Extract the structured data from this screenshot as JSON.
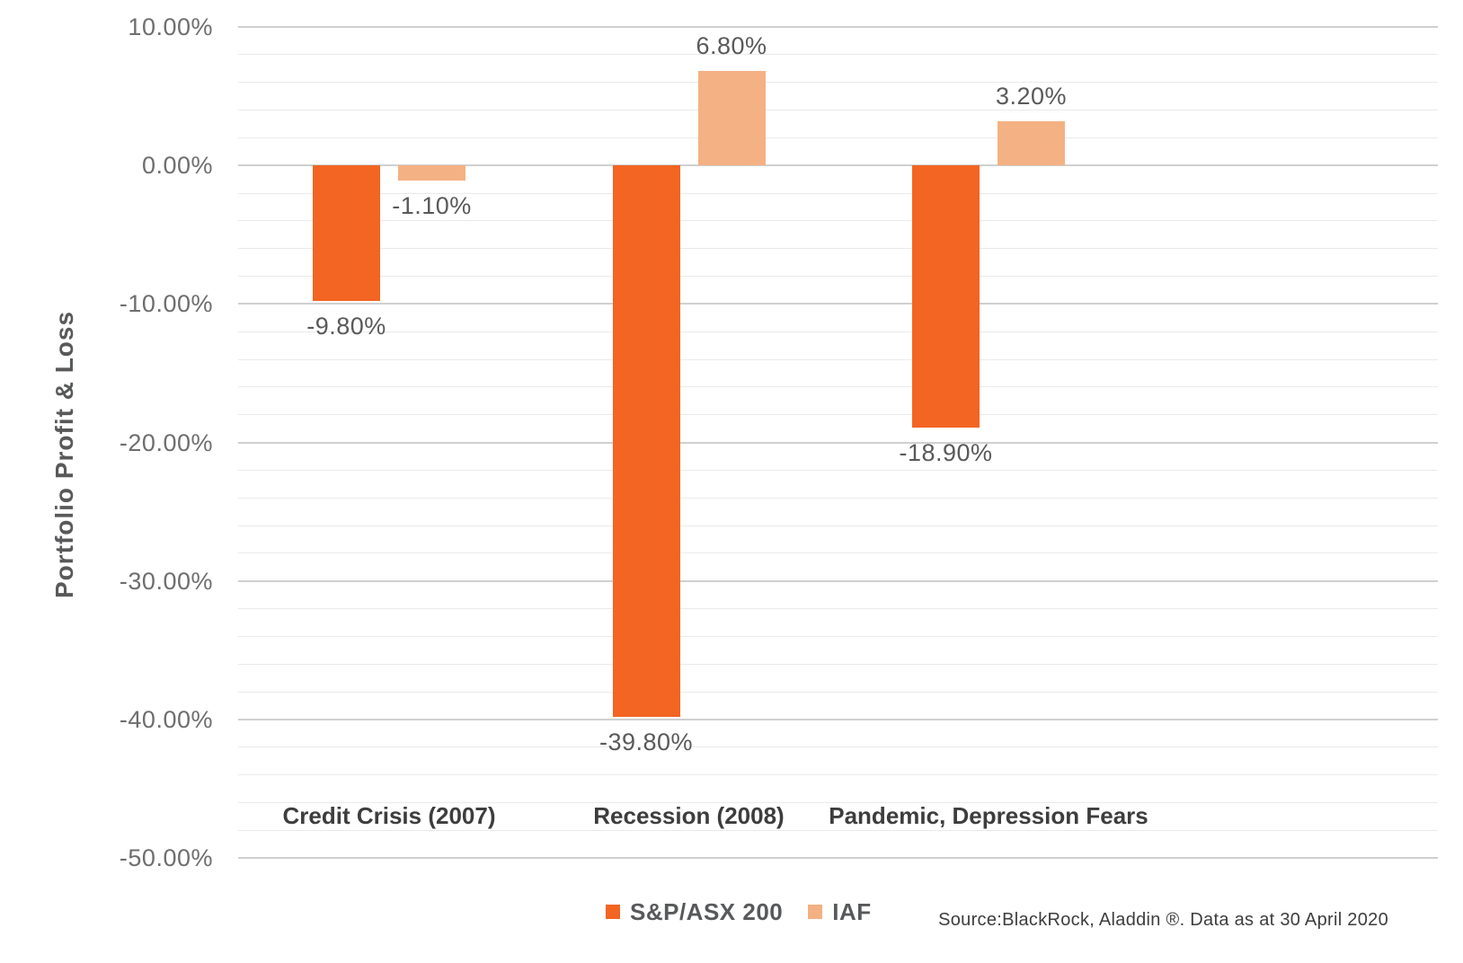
{
  "chart_data": {
    "type": "bar",
    "title": "",
    "categories": [
      "Credit Crisis (2007)",
      "Recession (2008)",
      "Pandemic, Depression Fears"
    ],
    "series": [
      {
        "name": "S&P/ASX 200",
        "color": "#F26522",
        "values": [
          -9.8,
          -39.8,
          -18.9
        ],
        "labels": [
          "-9.80%",
          "-39.80%",
          "-18.90%"
        ]
      },
      {
        "name": "IAF",
        "color": "#F4B183",
        "values": [
          -1.1,
          6.8,
          3.2
        ],
        "labels": [
          "-1.10%",
          "6.80%",
          "3.20%"
        ]
      }
    ],
    "ylabel": "Portfolio Profit & Loss",
    "xlabel": "",
    "ylim": [
      -50,
      10
    ],
    "ytick_step_major": 10,
    "ytick_step_minor": 2,
    "ytick_labels": [
      "10.00%",
      "0.00%",
      "-10.00%",
      "-20.00%",
      "-30.00%",
      "-40.00%",
      "-50.00%"
    ],
    "grid": true,
    "legend_position": "bottom"
  },
  "source_note": "Source:BlackRock, Aladdin ®. Data as at 30 April 2020"
}
